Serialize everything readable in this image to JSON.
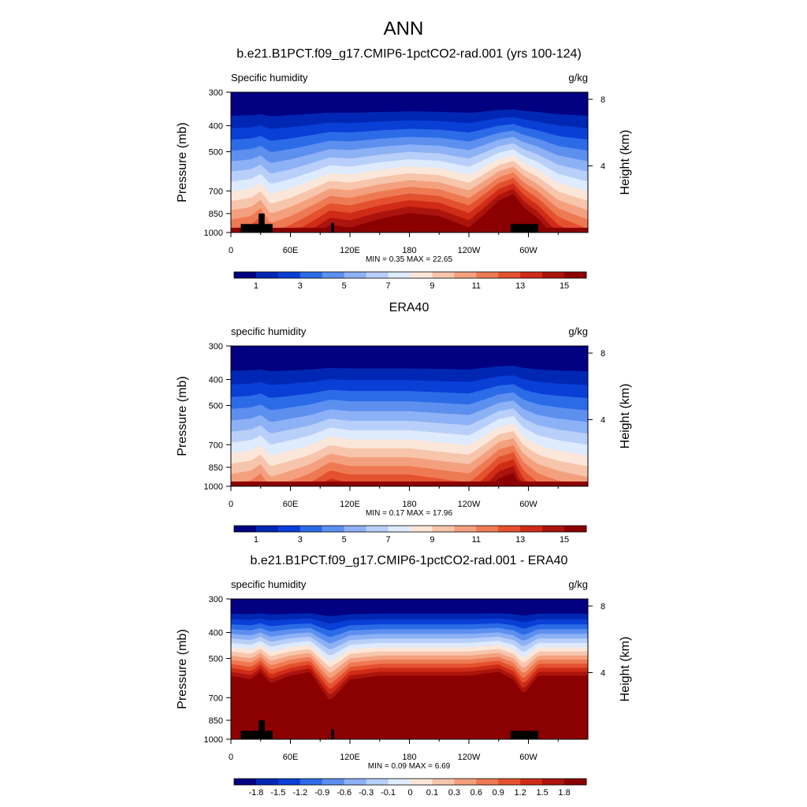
{
  "figure": {
    "title": "ANN"
  },
  "colors": {
    "abs_palette": [
      "#000080",
      "#0027b4",
      "#0a3fd6",
      "#2c6be7",
      "#5d8fef",
      "#8db1f5",
      "#b8cff9",
      "#deeafd",
      "#fbe7d9",
      "#f7c5ac",
      "#f4a07e",
      "#ee7a54",
      "#e4512f",
      "#cf2b17",
      "#ab140c",
      "#8b0000"
    ],
    "diff_palette": [
      "#000080",
      "#0027b4",
      "#0a3fd6",
      "#2c6be7",
      "#5d8fef",
      "#8db1f5",
      "#b8cff9",
      "#deeafd",
      "#fbe7d9",
      "#f7c5ac",
      "#f4a07e",
      "#ee7a54",
      "#e4512f",
      "#cf2b17",
      "#ab140c",
      "#8b0000"
    ],
    "mask": "#000000"
  },
  "chart_data": [
    {
      "type": "heatmap",
      "title": "b.e21.B1PCT.f09_g17.CMIP6-1pctCO2-rad.001 (yrs 100-124)",
      "field_label": "Specific humidity",
      "units": "g/kg",
      "ylabel": "Pressure (mb)",
      "y2label": "Height (km)",
      "y_ticks": [
        300,
        400,
        500,
        700,
        850,
        1000
      ],
      "y2_ticks": [
        8,
        4
      ],
      "x_ticks": [
        "0",
        "60E",
        "120E",
        "180",
        "120W",
        "60W"
      ],
      "x_tick_values": [
        0,
        60,
        120,
        180,
        240,
        300
      ],
      "xlim": [
        0,
        360
      ],
      "ylim": [
        1000,
        300
      ],
      "y_scale": "log-pressure",
      "stats": "MIN =   0.35  MAX =  22.65",
      "colorbar_labels": [
        "1",
        "3",
        "5",
        "7",
        "9",
        "11",
        "13",
        "15"
      ],
      "levels": [
        0,
        1,
        2,
        3,
        4,
        5,
        6,
        7,
        8,
        9,
        10,
        11,
        12,
        13,
        14,
        15
      ],
      "profile": {
        "lon": [
          0,
          20,
          30,
          40,
          60,
          80,
          100,
          120,
          150,
          180,
          210,
          240,
          270,
          285,
          295,
          310,
          330,
          360
        ],
        "moist_top_mb": [
          760,
          740,
          700,
          780,
          740,
          690,
          640,
          650,
          620,
          600,
          610,
          650,
          560,
          540,
          580,
          620,
          700,
          760
        ]
      },
      "masked_terrain": [
        {
          "lon_from": 10,
          "lon_to": 42,
          "p_top": 930
        },
        {
          "lon_from": 28,
          "lon_to": 34,
          "p_top": 850
        },
        {
          "lon_from": 101,
          "lon_to": 104,
          "p_top": 920
        },
        {
          "lon_from": 282,
          "lon_to": 310,
          "p_top": 930
        }
      ]
    },
    {
      "type": "heatmap",
      "title": "ERA40",
      "field_label": "specific humidity",
      "units": "g/kg",
      "ylabel": "Pressure (mb)",
      "y2label": "Height (km)",
      "y_ticks": [
        300,
        400,
        500,
        700,
        850,
        1000
      ],
      "y2_ticks": [
        8,
        4
      ],
      "x_ticks": [
        "0",
        "60E",
        "120E",
        "180",
        "120W",
        "60W"
      ],
      "x_tick_values": [
        0,
        60,
        120,
        180,
        240,
        300
      ],
      "xlim": [
        0,
        360
      ],
      "ylim": [
        1000,
        300
      ],
      "y_scale": "log-pressure",
      "stats": "MIN =   0.17  MAX =  17.96",
      "colorbar_labels": [
        "1",
        "3",
        "5",
        "7",
        "9",
        "11",
        "13",
        "15"
      ],
      "levels": [
        0,
        1,
        2,
        3,
        4,
        5,
        6,
        7,
        8,
        9,
        10,
        11,
        12,
        13,
        14,
        15
      ],
      "profile": {
        "lon": [
          0,
          20,
          30,
          40,
          60,
          80,
          100,
          120,
          150,
          180,
          210,
          240,
          270,
          285,
          295,
          310,
          330,
          360
        ],
        "moist_top_mb": [
          820,
          800,
          760,
          840,
          800,
          760,
          700,
          720,
          720,
          720,
          740,
          760,
          640,
          620,
          700,
          760,
          800,
          840
        ]
      },
      "masked_terrain": []
    },
    {
      "type": "heatmap",
      "title": "b.e21.B1PCT.f09_g17.CMIP6-1pctCO2-rad.001 - ERA40",
      "field_label": "specific humidity",
      "units": "g/kg",
      "ylabel": "Pressure (mb)",
      "y2label": "Height (km)",
      "y_ticks": [
        300,
        400,
        500,
        700,
        850,
        1000
      ],
      "y2_ticks": [
        8,
        4
      ],
      "x_ticks": [
        "0",
        "60E",
        "120E",
        "180",
        "120W",
        "60W"
      ],
      "x_tick_values": [
        0,
        60,
        120,
        180,
        240,
        300
      ],
      "xlim": [
        0,
        360
      ],
      "ylim": [
        1000,
        300
      ],
      "y_scale": "log-pressure",
      "stats": "MIN =   0.09  MAX =   6.69",
      "colorbar_labels": [
        "-1.8",
        "-1.5",
        "-1.2",
        "-0.9",
        "-0.6",
        "-0.3",
        "-0.1",
        "0",
        "0.1",
        "0.3",
        "0.6",
        "0.9",
        "1.2",
        "1.5",
        "1.8"
      ],
      "levels": [
        -1.8,
        -1.5,
        -1.2,
        -0.9,
        -0.6,
        -0.3,
        -0.1,
        0,
        0.1,
        0.3,
        0.6,
        0.9,
        1.2,
        1.5,
        1.8
      ],
      "profile": {
        "lon": [
          0,
          20,
          30,
          40,
          60,
          80,
          100,
          120,
          150,
          180,
          210,
          240,
          270,
          285,
          295,
          310,
          330,
          360
        ],
        "moist_top_mb": [
          470,
          480,
          460,
          490,
          470,
          460,
          540,
          480,
          470,
          470,
          470,
          470,
          460,
          480,
          520,
          470,
          470,
          470
        ]
      },
      "masked_terrain": [
        {
          "lon_from": 10,
          "lon_to": 42,
          "p_top": 930
        },
        {
          "lon_from": 28,
          "lon_to": 34,
          "p_top": 850
        },
        {
          "lon_from": 101,
          "lon_to": 104,
          "p_top": 920
        },
        {
          "lon_from": 282,
          "lon_to": 310,
          "p_top": 930
        }
      ]
    }
  ]
}
